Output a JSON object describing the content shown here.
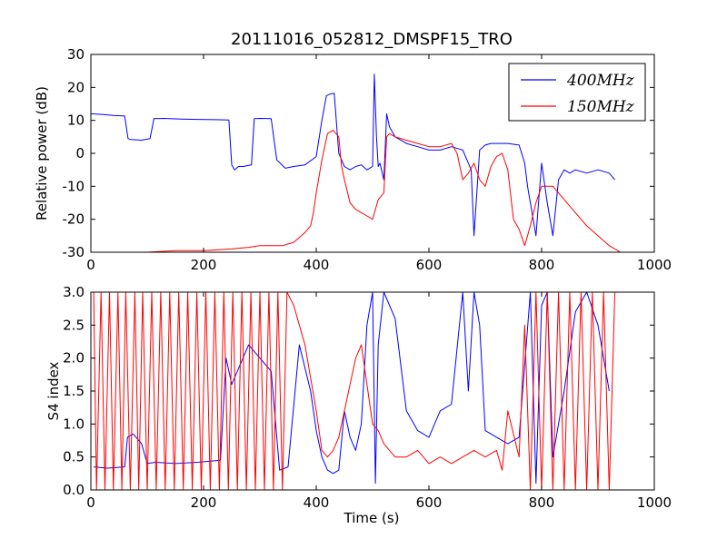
{
  "colors": {
    "blue": "#0000ff",
    "red": "#ff0000",
    "background": "#ffffff",
    "axes": "#000000"
  },
  "chart_data": [
    {
      "type": "line",
      "title": "20111016_052812_DMSPF15_TRO",
      "xlabel": "",
      "ylabel": "Relative power (dB)",
      "xlim": [
        0,
        1000
      ],
      "ylim": [
        -30,
        30
      ],
      "xticks": [
        0,
        200,
        400,
        600,
        800,
        1000
      ],
      "yticks": [
        -30,
        -20,
        -10,
        0,
        10,
        20,
        30
      ],
      "grid": false,
      "legend_position": "top-right",
      "series": [
        {
          "name": "400MHz",
          "color": "#0000ff",
          "x": [
            0,
            20,
            40,
            60,
            66,
            70,
            90,
            105,
            112,
            130,
            160,
            190,
            220,
            245,
            250,
            255,
            262,
            270,
            285,
            290,
            300,
            320,
            330,
            336,
            345,
            360,
            380,
            400,
            410,
            418,
            425,
            432,
            440,
            445,
            450,
            460,
            470,
            480,
            490,
            500,
            503,
            507,
            510,
            513,
            520,
            525,
            530,
            540,
            560,
            580,
            600,
            620,
            640,
            660,
            670,
            675,
            680,
            690,
            700,
            710,
            720,
            740,
            760,
            770,
            775,
            780,
            790,
            800,
            810,
            820,
            830,
            840,
            850,
            860,
            880,
            900,
            920,
            930
          ],
          "values": [
            12,
            11.8,
            11.5,
            11.3,
            4.5,
            4.2,
            4,
            4.5,
            10.5,
            10.6,
            10.4,
            10.3,
            10.2,
            10.1,
            -3.5,
            -5,
            -4,
            -4,
            -3.5,
            10.5,
            10.6,
            10.5,
            -2,
            -3,
            -4.5,
            -4,
            -3.5,
            -1,
            10,
            17.5,
            18,
            18.2,
            0,
            -2,
            -4,
            -5,
            -4,
            -3.5,
            -5,
            -4,
            24,
            5,
            -4,
            -3,
            -8,
            12,
            8,
            5,
            3,
            2,
            1,
            1,
            2,
            1,
            -3,
            -5,
            -25,
            1,
            2.5,
            3,
            3,
            3,
            2.5,
            -3,
            -10,
            -15,
            -25,
            -3,
            -15,
            -25,
            -8,
            -5,
            -6,
            -5,
            -6,
            -5,
            -6,
            -8
          ]
        },
        {
          "name": "150MHz",
          "color": "#ff0000",
          "x": [
            0,
            20,
            60,
            100,
            150,
            200,
            250,
            280,
            300,
            320,
            340,
            360,
            380,
            390,
            395,
            400,
            410,
            420,
            430,
            440,
            445,
            450,
            460,
            470,
            480,
            490,
            500,
            510,
            520,
            525,
            530,
            540,
            560,
            580,
            600,
            620,
            640,
            650,
            660,
            670,
            680,
            690,
            700,
            710,
            720,
            730,
            740,
            750,
            760,
            770,
            780,
            790,
            800,
            820,
            840,
            860,
            880,
            900,
            920,
            940
          ],
          "values": [
            -30,
            -30,
            -30,
            -30,
            -29.5,
            -29.5,
            -29,
            -28.5,
            -28,
            -28,
            -28,
            -27,
            -24,
            -22,
            -18,
            -12,
            -2,
            6,
            7,
            5,
            -4,
            -8,
            -15,
            -17,
            -18,
            -19,
            -20,
            -14,
            -12,
            5,
            6,
            5,
            4,
            3,
            2,
            2,
            3,
            0,
            -8,
            -6,
            -3,
            -8,
            -10,
            -4,
            -1,
            0,
            -5,
            -20,
            -23,
            -28,
            -22,
            -15,
            -10,
            -10,
            -14,
            -18,
            -22,
            -25,
            -28,
            -30
          ]
        }
      ]
    },
    {
      "type": "line",
      "title": "",
      "xlabel": "Time (s)",
      "ylabel": "S4 index",
      "xlim": [
        0,
        1000
      ],
      "ylim": [
        0,
        3
      ],
      "xticks": [
        0,
        200,
        400,
        600,
        800,
        1000
      ],
      "yticks": [
        0.0,
        0.5,
        1.0,
        1.5,
        2.0,
        2.5,
        3.0
      ],
      "grid": false,
      "series": [
        {
          "name": "400MHz",
          "color": "#0000ff",
          "x": [
            5,
            30,
            60,
            65,
            75,
            90,
            100,
            115,
            150,
            190,
            230,
            240,
            250,
            260,
            280,
            300,
            320,
            335,
            350,
            370,
            390,
            400,
            410,
            420,
            430,
            440,
            450,
            460,
            470,
            480,
            490,
            500,
            505,
            510,
            520,
            530,
            540,
            560,
            580,
            600,
            620,
            640,
            660,
            670,
            680,
            690,
            700,
            720,
            740,
            760,
            780,
            790,
            800,
            810,
            820,
            840,
            860,
            880,
            900,
            920
          ],
          "values": [
            0.35,
            0.33,
            0.35,
            0.8,
            0.85,
            0.7,
            0.4,
            0.42,
            0.4,
            0.42,
            0.45,
            2.0,
            1.6,
            1.8,
            2.2,
            2.0,
            1.8,
            0.3,
            0.35,
            2.2,
            1.5,
            0.9,
            0.5,
            0.3,
            0.25,
            0.3,
            1.2,
            0.8,
            0.6,
            1.0,
            2.5,
            3.0,
            0.1,
            2.2,
            3.0,
            2.8,
            2.6,
            1.2,
            0.9,
            0.8,
            1.2,
            1.3,
            3.0,
            1.5,
            3.0,
            2.5,
            0.9,
            0.8,
            0.7,
            0.8,
            3.0,
            0.1,
            2.8,
            3.0,
            0.5,
            1.5,
            2.7,
            3.0,
            2.5,
            1.5
          ]
        },
        {
          "name": "150MHz",
          "color": "#ff0000",
          "x": [
            5,
            10,
            18,
            25,
            33,
            40,
            48,
            55,
            62,
            70,
            78,
            85,
            92,
            100,
            108,
            116,
            124,
            132,
            140,
            148,
            156,
            164,
            172,
            180,
            188,
            196,
            204,
            212,
            220,
            228,
            236,
            244,
            252,
            260,
            268,
            276,
            284,
            292,
            300,
            308,
            316,
            324,
            332,
            340,
            348,
            360,
            380,
            400,
            410,
            420,
            430,
            440,
            450,
            460,
            470,
            480,
            490,
            500,
            510,
            520,
            530,
            540,
            560,
            580,
            600,
            620,
            640,
            660,
            680,
            700,
            720,
            730,
            740,
            760,
            770,
            780,
            790,
            800,
            810,
            820,
            830,
            840,
            850,
            860,
            870,
            880,
            890,
            900,
            910,
            920,
            930
          ],
          "values": [
            3.0,
            0.0,
            3.0,
            0.0,
            3.0,
            0.0,
            3.0,
            0.0,
            3.0,
            0.0,
            3.0,
            0.0,
            3.0,
            0.0,
            3.0,
            0.0,
            3.0,
            0.0,
            3.0,
            0.0,
            3.0,
            0.0,
            3.0,
            0.0,
            3.0,
            0.0,
            3.0,
            0.0,
            3.0,
            0.0,
            3.0,
            0.0,
            3.0,
            0.0,
            3.0,
            0.0,
            3.0,
            0.0,
            3.0,
            0.0,
            3.0,
            0.0,
            3.0,
            0.0,
            3.0,
            2.8,
            2.2,
            1.2,
            0.6,
            0.5,
            0.6,
            0.8,
            1.2,
            1.6,
            2.0,
            2.2,
            1.6,
            1.0,
            0.9,
            0.7,
            0.6,
            0.5,
            0.5,
            0.6,
            0.4,
            0.5,
            0.4,
            0.5,
            0.6,
            0.5,
            0.6,
            0.3,
            1.2,
            0.5,
            2.5,
            0.0,
            3.0,
            0.0,
            3.0,
            0.0,
            3.0,
            0.0,
            3.0,
            0.0,
            3.0,
            0.0,
            3.0,
            0.0,
            3.0,
            0.0,
            3.0
          ]
        }
      ]
    }
  ],
  "legend": {
    "entries": [
      {
        "label": "400MHz",
        "color": "#0000ff"
      },
      {
        "label": "150MHz",
        "color": "#ff0000"
      }
    ]
  }
}
